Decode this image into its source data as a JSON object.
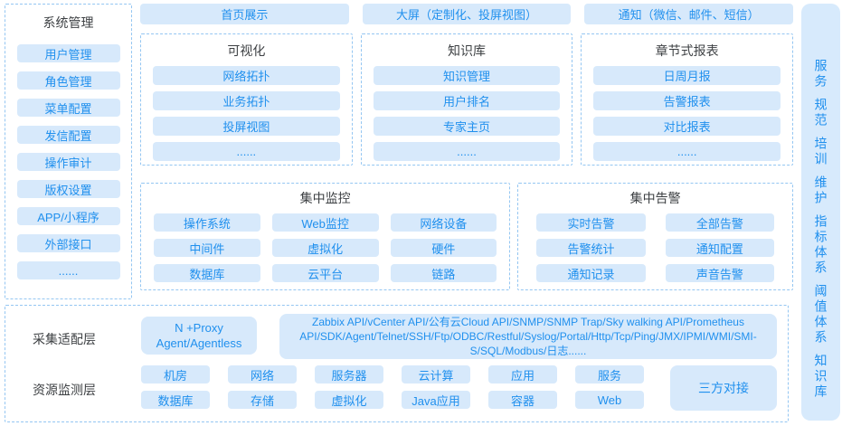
{
  "sidebar": {
    "title": "系统管理",
    "items": [
      "用户管理",
      "角色管理",
      "菜单配置",
      "发信配置",
      "操作审计",
      "版权设置",
      "APP/小程序",
      "外部接口",
      "......"
    ]
  },
  "top_buttons": [
    "首页展示",
    "大屏（定制化、投屏视图）",
    "通知（微信、邮件、短信）"
  ],
  "sections": [
    {
      "title": "可视化",
      "items": [
        "网络拓扑",
        "业务拓扑",
        "投屏视图",
        "......"
      ]
    },
    {
      "title": "知识库",
      "items": [
        "知识管理",
        "用户排名",
        "专家主页",
        "......"
      ]
    },
    {
      "title": "章节式报表",
      "items": [
        "日周月报",
        "告警报表",
        "对比报表",
        "......"
      ]
    }
  ],
  "monitoring": {
    "title": "集中监控",
    "items": [
      "操作系统",
      "Web监控",
      "网络设备",
      "中间件",
      "虚拟化",
      "硬件",
      "数据库",
      "云平台",
      "链路"
    ]
  },
  "alerting": {
    "title": "集中告警",
    "items": [
      "实时告警",
      "全部告警",
      "告警统计",
      "通知配置",
      "通知记录",
      "声音告警"
    ]
  },
  "bottom": {
    "adapter_layer_label": "采集适配层",
    "proxy_line1": "N +Proxy",
    "proxy_line2": "Agent/Agentless",
    "api_text": "Zabbix API/vCenter API/公有云Cloud API/SNMP/SNMP Trap/Sky walking API/Prometheus API/SDK/Agent/Telnet/SSH/Ftp/ODBC/Restful/Syslog/Portal/Http/Tcp/Ping/JMX/IPMI/WMI/SMI-S/SQL/Modbus/日志......",
    "resource_layer_label": "资源监测层",
    "resource_row1": [
      "机房",
      "网络",
      "服务器",
      "云计算",
      "应用",
      "服务"
    ],
    "resource_row2": [
      "数据库",
      "存储",
      "虚拟化",
      "Java应用",
      "容器",
      "Web"
    ],
    "third_party": "三方对接"
  },
  "right_strip": {
    "items": [
      "服务",
      "规范",
      "培训",
      "维护",
      "指标体系",
      "阈值体系",
      "知识库"
    ]
  },
  "colors": {
    "chip_bg": "#d7e9fb",
    "chip_text": "#2090ee",
    "header_text": "#3d4043",
    "dash_border": "#94c6f2",
    "strip_bg": "#d7eafc"
  }
}
